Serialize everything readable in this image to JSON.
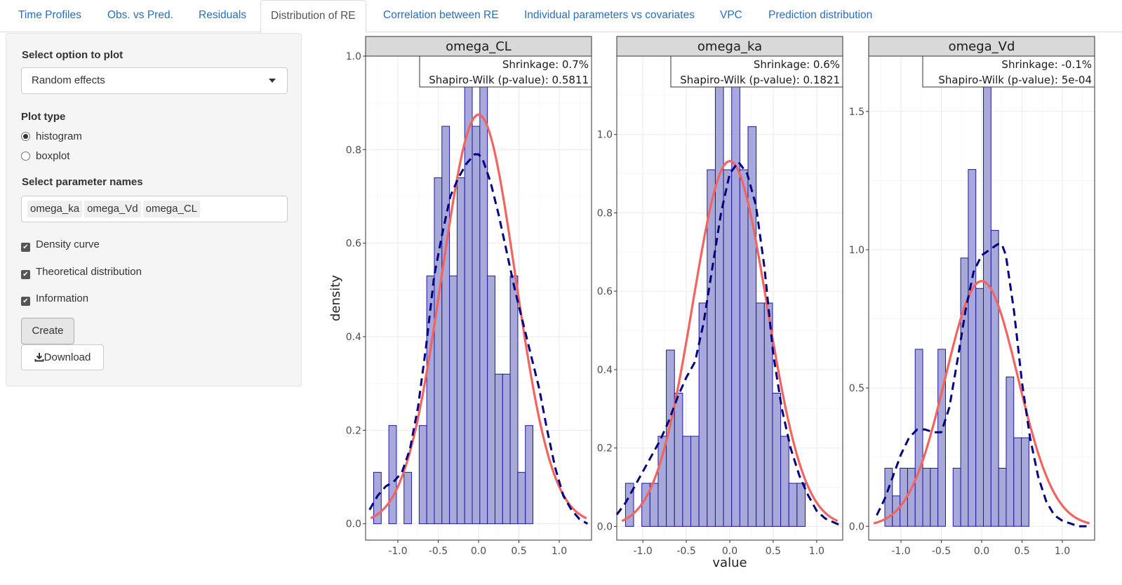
{
  "tabs": [
    {
      "label": "Time Profiles",
      "active": false
    },
    {
      "label": "Obs. vs Pred.",
      "active": false
    },
    {
      "label": "Residuals",
      "active": false
    },
    {
      "label": "Distribution of RE",
      "active": true
    },
    {
      "label": "Correlation between RE",
      "active": false
    },
    {
      "label": "Individual parameters vs covariates",
      "active": false
    },
    {
      "label": "VPC",
      "active": false
    },
    {
      "label": "Prediction distribution",
      "active": false
    }
  ],
  "sidebar": {
    "select_option_label": "Select option to plot",
    "select_option_value": "Random effects",
    "plot_type_label": "Plot type",
    "plot_types": [
      {
        "label": "histogram",
        "selected": true
      },
      {
        "label": "boxplot",
        "selected": false
      }
    ],
    "param_names_label": "Select parameter names",
    "param_tags": [
      "omega_ka",
      "omega_Vd",
      "omega_CL"
    ],
    "checkboxes": [
      {
        "label": "Density curve",
        "checked": true
      },
      {
        "label": "Theoretical distribution",
        "checked": true
      },
      {
        "label": "Information",
        "checked": true
      }
    ],
    "create_label": "Create",
    "download_label": "Download"
  },
  "colors": {
    "bar_fill": "#a9a9d9",
    "bar_stroke": "#1a1aa0",
    "density_line": "#000080",
    "theoretical_line": "#f2645f",
    "strip_bg": "#d9d9d9",
    "link": "#2a6ebb"
  },
  "chart_data": {
    "type": "bar",
    "xlabel": "value",
    "ylabel": "density",
    "xticks": [
      -1.0,
      -0.5,
      0.0,
      0.5,
      1.0
    ],
    "panels": [
      {
        "title": "omega_CL",
        "info_lines": [
          "Shrinkage: 0.7%",
          "Shapiro-Wilk (p-value): 0.5811"
        ],
        "xlim": [
          -1.4,
          1.4
        ],
        "ylim": [
          -0.035,
          1.0
        ],
        "yticks": [
          0.0,
          0.2,
          0.4,
          0.6,
          0.8,
          1.0
        ],
        "bins": {
          "start": -1.3,
          "width": 0.094,
          "values": [
            0.11,
            0.0,
            0.21,
            0.0,
            0.11,
            0.0,
            0.21,
            0.53,
            0.74,
            0.85,
            0.53,
            0.74,
            0.97,
            0.85,
            0.97,
            0.53,
            0.32,
            0.32,
            0.53,
            0.11,
            0.21
          ]
        },
        "density_curve": {
          "x": [
            -1.35,
            -1.25,
            -1.15,
            -1.05,
            -0.95,
            -0.85,
            -0.75,
            -0.65,
            -0.55,
            -0.45,
            -0.35,
            -0.25,
            -0.15,
            -0.05,
            0.0,
            0.05,
            0.15,
            0.25,
            0.35,
            0.45,
            0.55,
            0.65,
            0.75,
            0.85,
            0.95,
            1.05,
            1.15,
            1.25,
            1.35
          ],
          "y": [
            0.03,
            0.06,
            0.08,
            0.09,
            0.11,
            0.16,
            0.25,
            0.38,
            0.53,
            0.62,
            0.7,
            0.74,
            0.77,
            0.79,
            0.79,
            0.78,
            0.73,
            0.66,
            0.58,
            0.5,
            0.43,
            0.36,
            0.29,
            0.2,
            0.12,
            0.06,
            0.03,
            0.01,
            0.0
          ]
        },
        "theoretical": {
          "mean": 0.0,
          "sd": 0.456
        }
      },
      {
        "title": "omega_ka",
        "info_lines": [
          "Shrinkage: 0.6%",
          "Shapiro-Wilk (p-value): 0.1821"
        ],
        "xlim": [
          -1.3,
          1.3
        ],
        "ylim": [
          -0.035,
          1.2
        ],
        "yticks": [
          0.0,
          0.2,
          0.4,
          0.6,
          0.8,
          1.0
        ],
        "bins": {
          "start": -1.2,
          "width": 0.094,
          "values": [
            0.11,
            0.0,
            0.11,
            0.11,
            0.23,
            0.45,
            0.34,
            0.23,
            0.23,
            0.57,
            0.91,
            1.14,
            0.91,
            1.14,
            0.91,
            1.02,
            0.57,
            0.57,
            0.34,
            0.23,
            0.11,
            0.11
          ]
        },
        "density_curve": {
          "x": [
            -1.3,
            -1.2,
            -1.1,
            -1.0,
            -0.9,
            -0.8,
            -0.7,
            -0.6,
            -0.5,
            -0.4,
            -0.3,
            -0.2,
            -0.1,
            0.0,
            0.1,
            0.2,
            0.3,
            0.4,
            0.5,
            0.6,
            0.7,
            0.8,
            0.9,
            1.0,
            1.1,
            1.2,
            1.3
          ],
          "y": [
            0.03,
            0.06,
            0.1,
            0.14,
            0.18,
            0.22,
            0.27,
            0.33,
            0.38,
            0.42,
            0.52,
            0.66,
            0.8,
            0.9,
            0.93,
            0.9,
            0.82,
            0.66,
            0.44,
            0.3,
            0.2,
            0.13,
            0.08,
            0.04,
            0.02,
            0.01,
            0.0
          ]
        },
        "theoretical": {
          "mean": 0.0,
          "sd": 0.428
        }
      },
      {
        "title": "omega_Vd",
        "info_lines": [
          "Shrinkage: -0.1%",
          "Shapiro-Wilk (p-value): 5e-04"
        ],
        "xlim": [
          -1.4,
          1.4
        ],
        "ylim": [
          -0.05,
          1.7
        ],
        "yticks": [
          0.0,
          0.5,
          1.0,
          1.5
        ],
        "bins": {
          "start": -1.2,
          "width": 0.094,
          "values": [
            0.21,
            0.11,
            0.21,
            0.21,
            0.64,
            0.21,
            0.21,
            0.64,
            0.0,
            0.21,
            0.97,
            1.29,
            0.86,
            1.61,
            1.07,
            0.21,
            0.54,
            0.32,
            0.32
          ]
        },
        "density_curve": {
          "x": [
            -1.3,
            -1.2,
            -1.1,
            -1.0,
            -0.9,
            -0.8,
            -0.7,
            -0.6,
            -0.5,
            -0.4,
            -0.3,
            -0.2,
            -0.1,
            0.0,
            0.1,
            0.2,
            0.25,
            0.3,
            0.4,
            0.5,
            0.6,
            0.7,
            0.8,
            0.9,
            1.0,
            1.1,
            1.2,
            1.3
          ],
          "y": [
            0.04,
            0.1,
            0.18,
            0.26,
            0.32,
            0.35,
            0.35,
            0.34,
            0.34,
            0.43,
            0.6,
            0.78,
            0.92,
            0.98,
            1.0,
            1.02,
            1.02,
            0.98,
            0.78,
            0.52,
            0.32,
            0.18,
            0.09,
            0.04,
            0.02,
            0.01,
            0.0,
            0.0
          ]
        },
        "theoretical": {
          "mean": 0.0,
          "sd": 0.45
        }
      }
    ]
  }
}
